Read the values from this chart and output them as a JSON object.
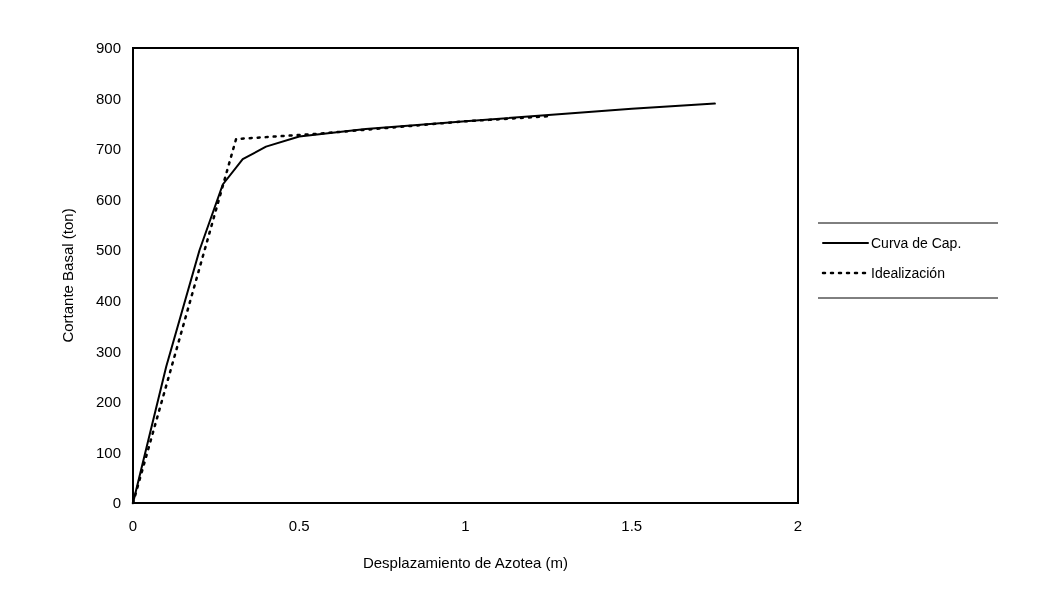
{
  "chart_data": {
    "type": "line",
    "xlabel": "Desplazamiento de Azotea (m)",
    "ylabel": "Cortante Basal (ton)",
    "xlim": [
      0,
      2
    ],
    "xticks": [
      0,
      0.5,
      1,
      1.5,
      2
    ],
    "ylim": [
      0,
      900
    ],
    "yticks": [
      0,
      100,
      200,
      300,
      400,
      500,
      600,
      700,
      800,
      900
    ],
    "grid": false,
    "legend": "right",
    "marker": "none",
    "series": [
      {
        "name": "Curva de Cap.",
        "color": "#000000",
        "line_style": "solid",
        "x": [
          0,
          0.1,
          0.2,
          0.27,
          0.33,
          0.4,
          0.5,
          0.7,
          1.0,
          1.3,
          1.5,
          1.75
        ],
        "values": [
          0,
          270,
          500,
          630,
          680,
          705,
          725,
          740,
          755,
          770,
          780,
          790
        ]
      },
      {
        "name": "Idealización",
        "color": "#000000",
        "line_style": "dotted",
        "x": [
          0,
          0.31,
          0.55,
          1.0,
          1.25
        ],
        "values": [
          0,
          720,
          730,
          755,
          765
        ]
      }
    ]
  }
}
